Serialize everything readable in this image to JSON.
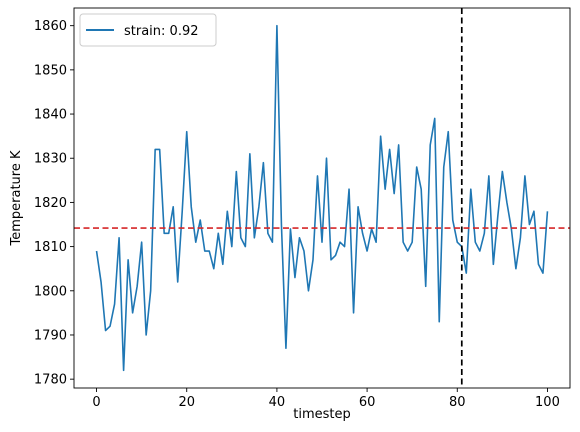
{
  "chart_data": {
    "type": "line",
    "title": "",
    "xlabel": "timestep",
    "ylabel": "Temperature K",
    "xlim": [
      -5,
      105
    ],
    "ylim": [
      1778,
      1864
    ],
    "xticks": [
      0,
      20,
      40,
      60,
      80,
      100
    ],
    "yticks": [
      1780,
      1790,
      1800,
      1810,
      1820,
      1830,
      1840,
      1850,
      1860
    ],
    "legend": {
      "placement": "top-left",
      "entries": [
        "strain: 0.92"
      ]
    },
    "series": [
      {
        "name": "strain: 0.92",
        "color": "#1f77b4",
        "x": [
          0,
          1,
          2,
          3,
          4,
          5,
          6,
          7,
          8,
          9,
          10,
          11,
          12,
          13,
          14,
          15,
          16,
          17,
          18,
          19,
          20,
          21,
          22,
          23,
          24,
          25,
          26,
          27,
          28,
          29,
          30,
          31,
          32,
          33,
          34,
          35,
          36,
          37,
          38,
          39,
          40,
          41,
          42,
          43,
          44,
          45,
          46,
          47,
          48,
          49,
          50,
          51,
          52,
          53,
          54,
          55,
          56,
          57,
          58,
          59,
          60,
          61,
          62,
          63,
          64,
          65,
          66,
          67,
          68,
          69,
          70,
          71,
          72,
          73,
          74,
          75,
          76,
          77,
          78,
          79,
          80,
          81,
          82,
          83,
          84,
          85,
          86,
          87,
          88,
          89,
          90,
          91,
          92,
          93,
          94,
          95,
          96,
          97,
          98,
          99,
          100
        ],
        "values": [
          1809,
          1802,
          1791,
          1792,
          1797,
          1812,
          1782,
          1807,
          1795,
          1801,
          1811,
          1790,
          1800,
          1832,
          1832,
          1813,
          1813,
          1819,
          1802,
          1818,
          1836,
          1819,
          1811,
          1816,
          1809,
          1809,
          1805,
          1813,
          1806,
          1818,
          1810,
          1827,
          1812,
          1810,
          1831,
          1812,
          1819,
          1829,
          1813,
          1811,
          1860,
          1815,
          1787,
          1814,
          1803,
          1812,
          1809,
          1800,
          1807,
          1826,
          1811,
          1830,
          1807,
          1808,
          1811,
          1810,
          1823,
          1795,
          1819,
          1813,
          1809,
          1814,
          1811,
          1835,
          1823,
          1832,
          1822,
          1833,
          1811,
          1809,
          1811,
          1828,
          1823,
          1801,
          1833,
          1839,
          1793,
          1828,
          1836,
          1816,
          1811,
          1810,
          1804,
          1823,
          1811,
          1809,
          1813,
          1826,
          1806,
          1817,
          1827,
          1820,
          1814,
          1805,
          1812,
          1826,
          1815,
          1818,
          1806,
          1804,
          1818
        ]
      }
    ],
    "reference_lines": [
      {
        "orientation": "horizontal",
        "value": 1814.2,
        "color": "#d62728",
        "style": "dashed"
      },
      {
        "orientation": "vertical",
        "value": 81,
        "color": "#000000",
        "style": "dashed"
      }
    ],
    "grid": false
  }
}
